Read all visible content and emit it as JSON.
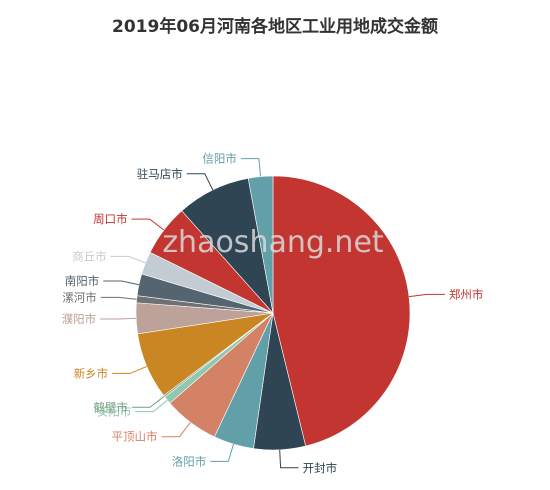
{
  "chart_data": {
    "type": "pie",
    "title": "2019年06月河南各地区工业用地成交金额",
    "watermark": "zhaoshang.net",
    "slices": [
      {
        "label": "郑州市",
        "value": 44.6,
        "color": "#c23531"
      },
      {
        "label": "开封市",
        "value": 5.9,
        "color": "#2f4554"
      },
      {
        "label": "洛阳市",
        "value": 4.6,
        "color": "#61a0a8"
      },
      {
        "label": "平顶山市",
        "value": 6.3,
        "color": "#d48265"
      },
      {
        "label": "安阳市",
        "value": 0.9,
        "color": "#91c7ae"
      },
      {
        "label": "鹤壁市",
        "value": 0.2,
        "color": "#749f83"
      },
      {
        "label": "新乡市",
        "value": 7.6,
        "color": "#ca8622"
      },
      {
        "label": "濮阳市",
        "value": 3.5,
        "color": "#bda29a"
      },
      {
        "label": "漯河市",
        "value": 0.8,
        "color": "#6e7074"
      },
      {
        "label": "南阳市",
        "value": 2.5,
        "color": "#546570"
      },
      {
        "label": "商丘市",
        "value": 2.6,
        "color": "#c4ccd3"
      },
      {
        "label": "周口市",
        "value": 5.9,
        "color": "#c23531"
      },
      {
        "label": "驻马店市",
        "value": 8.4,
        "color": "#2f4554"
      },
      {
        "label": "信阳市",
        "value": 2.8,
        "color": "#61a0a8"
      }
    ]
  }
}
